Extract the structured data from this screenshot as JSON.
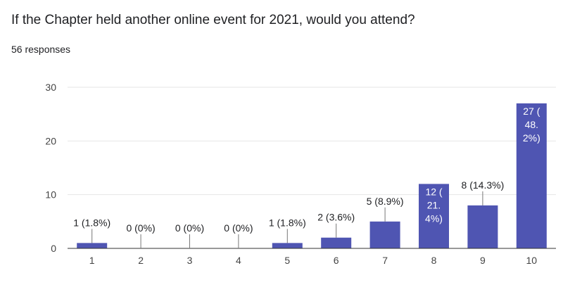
{
  "header": {
    "question": "If the Chapter held another online event for 2021, would you attend?",
    "responses": "56 responses"
  },
  "colors": {
    "bar": "#4f55b2",
    "grid": "#e6e6e6",
    "axis": "#333333",
    "label_dark": "#202124",
    "label_light": "#ffffff"
  },
  "chart_data": {
    "type": "bar",
    "title": "",
    "xlabel": "",
    "ylabel": "",
    "ylim": [
      0,
      30
    ],
    "yticks": [
      0,
      10,
      20,
      30
    ],
    "grid": true,
    "categories": [
      "1",
      "2",
      "3",
      "4",
      "5",
      "6",
      "7",
      "8",
      "9",
      "10"
    ],
    "values": [
      1,
      0,
      0,
      0,
      1,
      2,
      5,
      12,
      8,
      27
    ],
    "data_labels": [
      [
        "1 (1.8%)"
      ],
      [
        "0 (0%)"
      ],
      [
        "0 (0%)"
      ],
      [
        "0 (0%)"
      ],
      [
        "1 (1.8%)"
      ],
      [
        "2 (3.6%)"
      ],
      [
        "5 (8.9%)"
      ],
      [
        "12 (",
        "21.",
        "4%)"
      ],
      [
        "8 (14.3%)"
      ],
      [
        "27 (",
        "48.",
        "2%)"
      ]
    ]
  }
}
